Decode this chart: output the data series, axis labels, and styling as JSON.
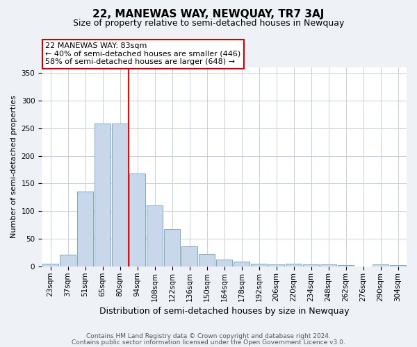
{
  "title": "22, MANEWAS WAY, NEWQUAY, TR7 3AJ",
  "subtitle": "Size of property relative to semi-detached houses in Newquay",
  "xlabel": "Distribution of semi-detached houses by size in Newquay",
  "ylabel": "Number of semi-detached properties",
  "bins": [
    "23sqm",
    "37sqm",
    "51sqm",
    "65sqm",
    "80sqm",
    "94sqm",
    "108sqm",
    "122sqm",
    "136sqm",
    "150sqm",
    "164sqm",
    "178sqm",
    "192sqm",
    "206sqm",
    "220sqm",
    "234sqm",
    "248sqm",
    "262sqm",
    "276sqm",
    "290sqm",
    "304sqm"
  ],
  "values": [
    5,
    21,
    135,
    258,
    258,
    168,
    110,
    68,
    36,
    23,
    13,
    9,
    5,
    4,
    5,
    4,
    4,
    2,
    0,
    4,
    3
  ],
  "bar_color": "#c8d8ea",
  "bar_edge_color": "#7aaac8",
  "red_line_index": 5,
  "annotation_title": "22 MANEWAS WAY: 83sqm",
  "annotation_line1": "← 40% of semi-detached houses are smaller (446)",
  "annotation_line2": "58% of semi-detached houses are larger (648) →",
  "annotation_box_color": "#ffffff",
  "annotation_box_edge_color": "#cc0000",
  "ylim": [
    0,
    360
  ],
  "yticks": [
    0,
    50,
    100,
    150,
    200,
    250,
    300,
    350
  ],
  "footnote1": "Contains HM Land Registry data © Crown copyright and database right 2024.",
  "footnote2": "Contains public sector information licensed under the Open Government Licence v3.0.",
  "bg_color": "#eef2f6",
  "plot_bg_color": "#ffffff",
  "grid_color": "#c8d0da",
  "title_fontsize": 11,
  "subtitle_fontsize": 9,
  "xlabel_fontsize": 9,
  "ylabel_fontsize": 8,
  "tick_fontsize": 7.5,
  "footnote_fontsize": 6.5,
  "annotation_fontsize": 8
}
